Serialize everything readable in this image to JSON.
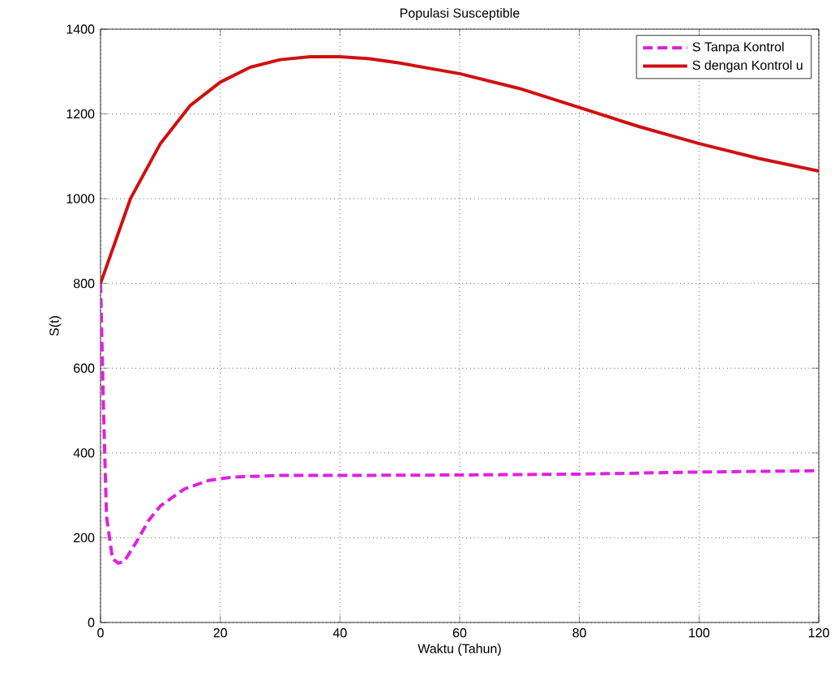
{
  "chart_data": {
    "type": "line",
    "title": "Populasi Susceptible",
    "xlabel": "Waktu (Tahun)",
    "ylabel": "S(t)",
    "xlim": [
      0,
      120
    ],
    "ylim": [
      0,
      1400
    ],
    "xticks": [
      0,
      20,
      40,
      60,
      80,
      100,
      120
    ],
    "yticks": [
      0,
      200,
      400,
      600,
      800,
      1000,
      1200,
      1400
    ],
    "grid": true,
    "legend": "top right",
    "series": [
      {
        "name": "S Tanpa Kontrol",
        "color": "#e020e0",
        "line_style": "dashed",
        "x": [
          0,
          0.5,
          1,
          2,
          3,
          4,
          6,
          8,
          10,
          14,
          18,
          22,
          30,
          40,
          60,
          80,
          100,
          120
        ],
        "values": [
          800,
          500,
          250,
          150,
          140,
          145,
          190,
          240,
          275,
          315,
          335,
          343,
          347,
          347,
          348,
          350,
          355,
          358
        ]
      },
      {
        "name": "S dengan Kontrol u",
        "color": "#d01010",
        "line_style": "solid",
        "x": [
          0,
          5,
          10,
          15,
          20,
          25,
          30,
          35,
          40,
          45,
          50,
          60,
          70,
          80,
          90,
          100,
          110,
          120
        ],
        "values": [
          800,
          1000,
          1130,
          1220,
          1275,
          1310,
          1328,
          1335,
          1335,
          1330,
          1320,
          1295,
          1260,
          1215,
          1170,
          1130,
          1095,
          1065
        ]
      }
    ]
  }
}
